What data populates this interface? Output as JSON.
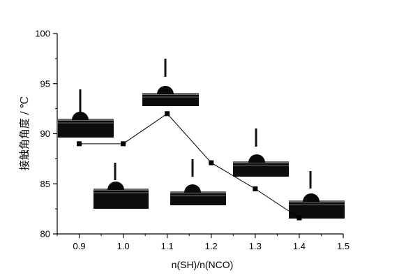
{
  "chart_data": {
    "type": "line",
    "x": [
      0.9,
      1.0,
      1.1,
      1.2,
      1.3,
      1.4
    ],
    "values": [
      89.0,
      89.0,
      92.0,
      87.1,
      84.5,
      81.6
    ],
    "xlabel": "n(SH)/n(NCO)",
    "ylabel": "接触角角度  /  ℃",
    "xlim": [
      0.85,
      1.5
    ],
    "ylim": [
      80,
      100
    ],
    "xticks": [
      "0.9",
      "1.0",
      "1.1",
      "1.2",
      "1.3",
      "1.4",
      "1.5"
    ],
    "yticks": [
      "80",
      "85",
      "90",
      "95",
      "100"
    ],
    "grid": false,
    "marker": "square",
    "line_color": "#000000",
    "insets": "droplet contact-angle photographs per data point"
  }
}
